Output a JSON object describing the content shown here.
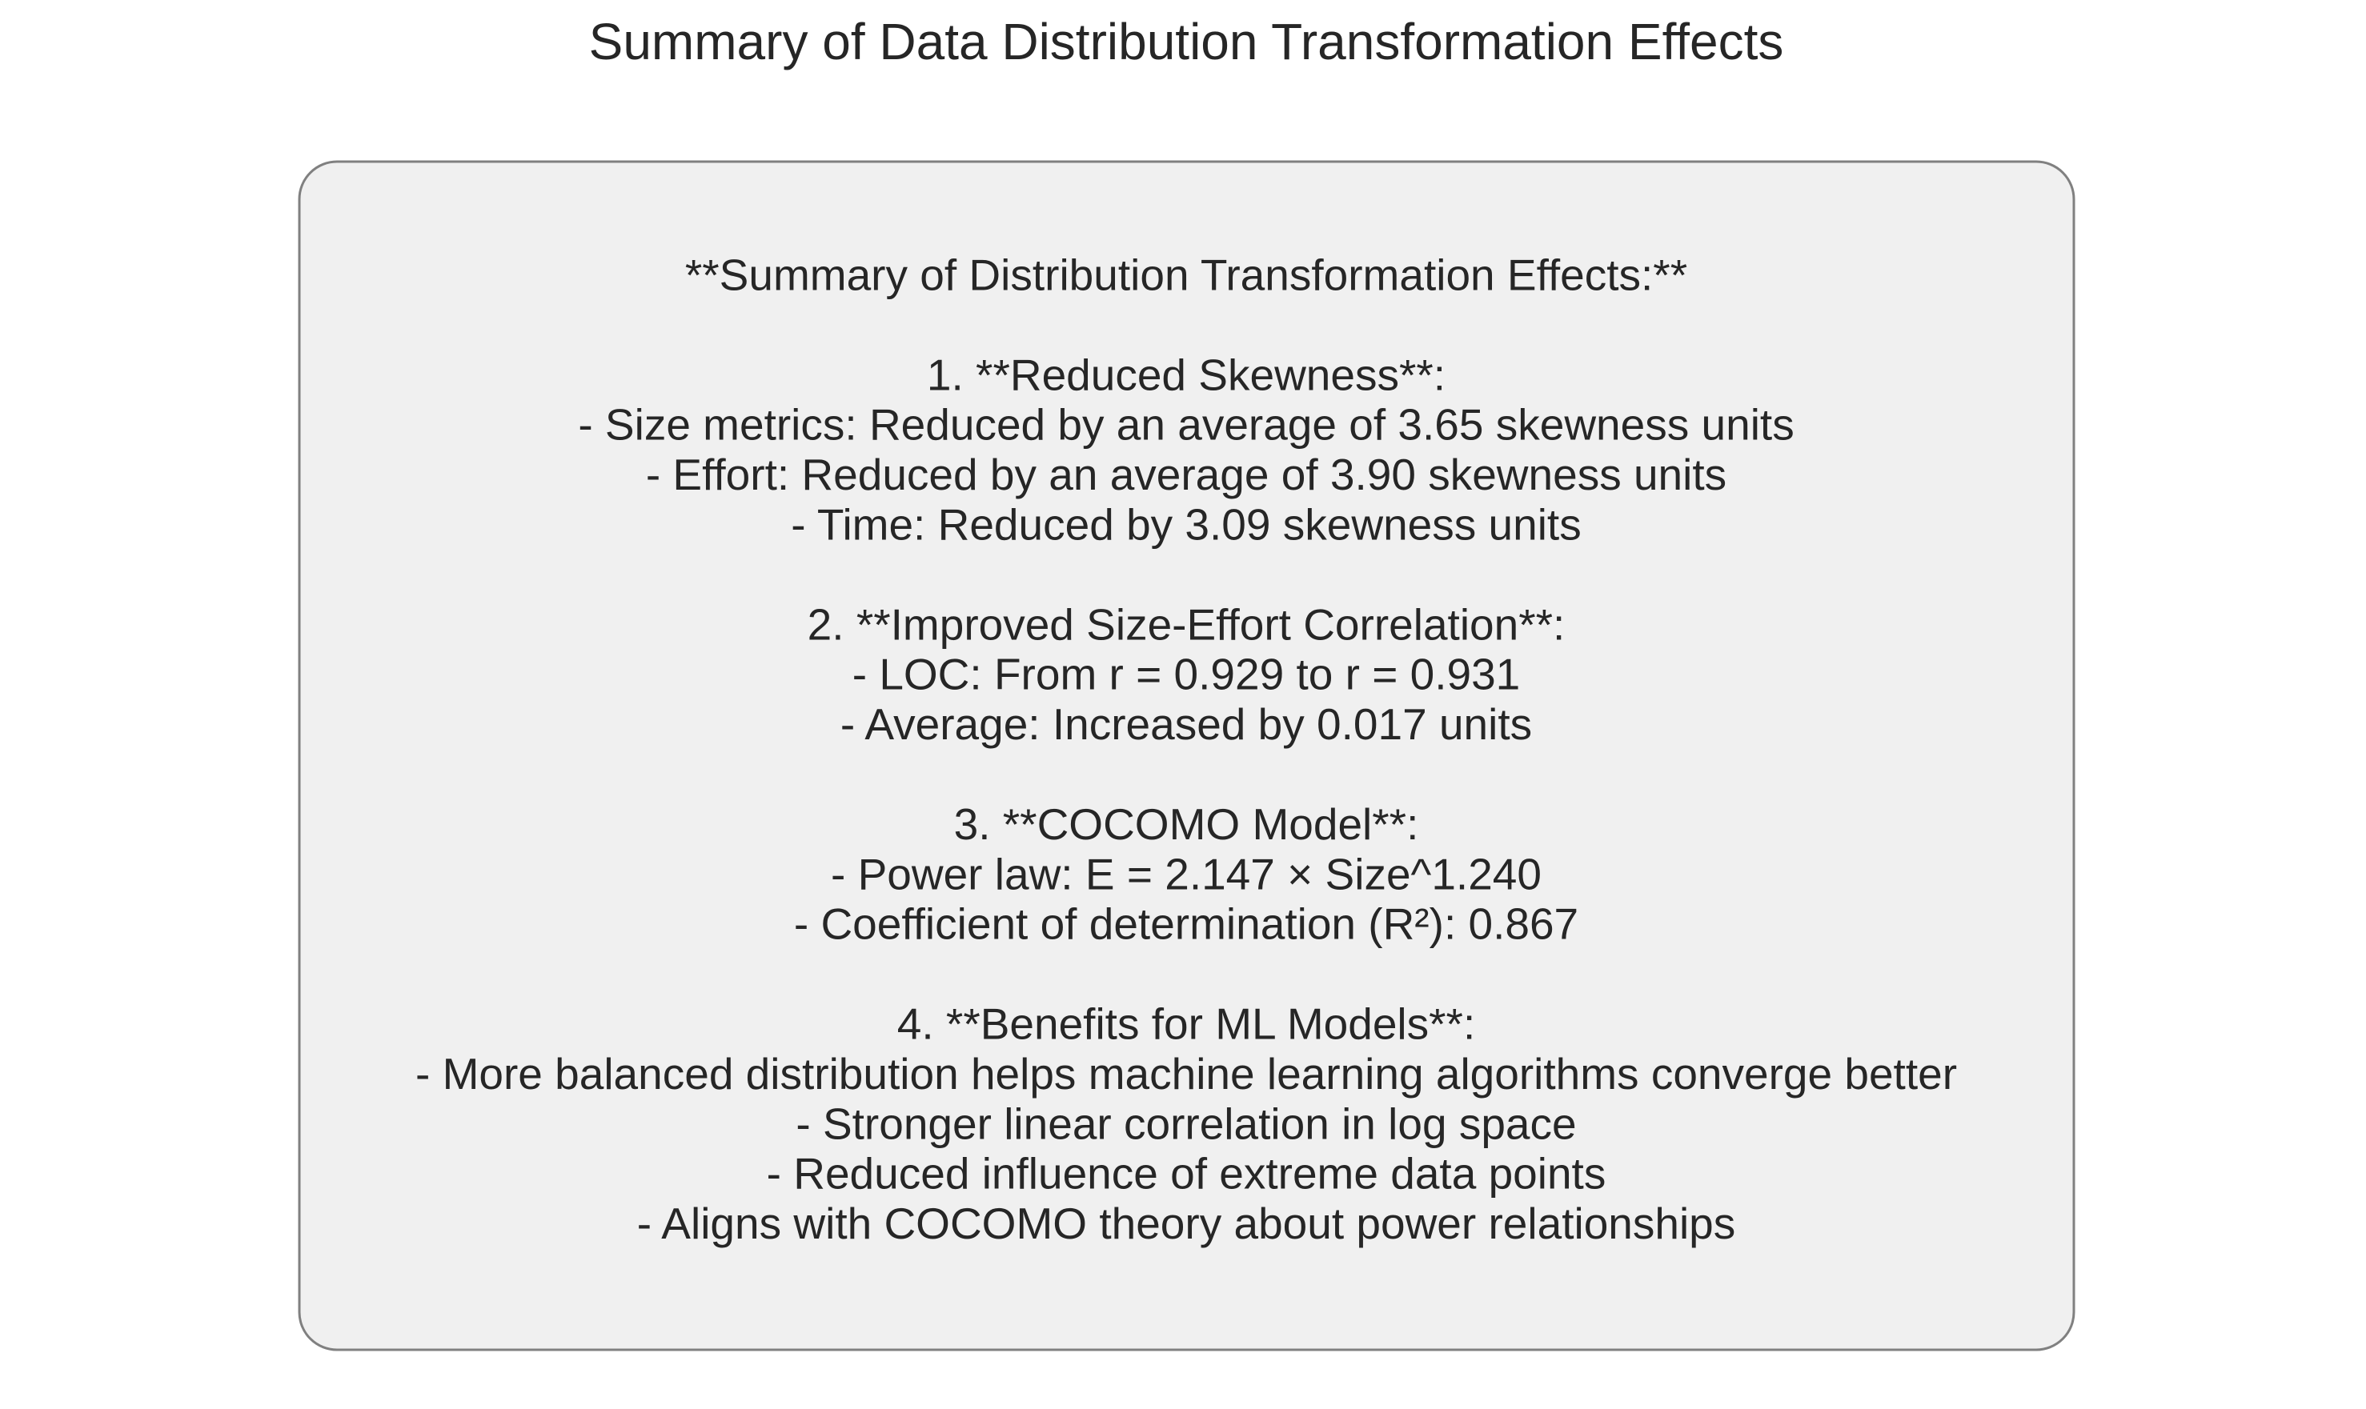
{
  "title": "Summary of Data Distribution Transformation Effects",
  "box": {
    "heading": "**Summary of Distribution Transformation Effects:**",
    "sections": [
      {
        "heading": "1. **Reduced Skewness**:",
        "items": [
          "- Size metrics: Reduced by an average of 3.65 skewness units",
          "- Effort: Reduced by an average of 3.90 skewness units",
          "- Time: Reduced by 3.09 skewness units"
        ]
      },
      {
        "heading": "2. **Improved Size-Effort Correlation**:",
        "items": [
          "- LOC: From r = 0.929 to r = 0.931",
          "- Average: Increased by 0.017 units"
        ]
      },
      {
        "heading": "3. **COCOMO Model**:",
        "items": [
          "- Power law: E = 2.147 × Size^1.240",
          "- Coefficient of determination (R²): 0.867"
        ]
      },
      {
        "heading": "4. **Benefits for ML Models**:",
        "items": [
          "- More balanced distribution helps machine learning algorithms converge better",
          "- Stronger linear correlation in log space",
          "- Reduced influence of extreme data points",
          "- Aligns with COCOMO theory about power relationships"
        ]
      }
    ]
  }
}
